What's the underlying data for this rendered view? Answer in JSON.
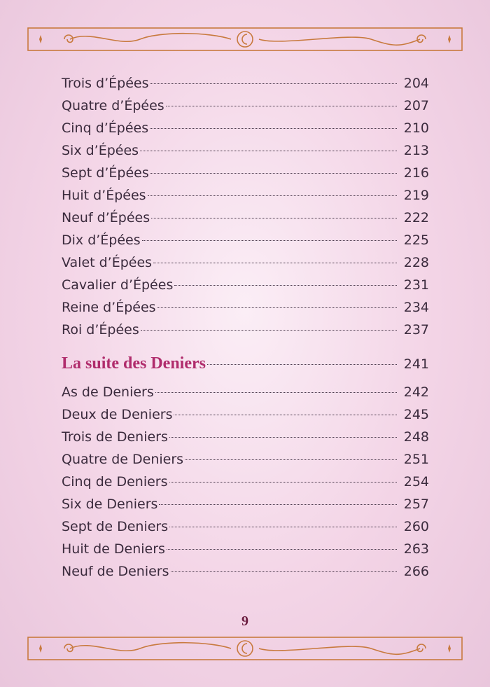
{
  "toc": {
    "entries_before": [
      {
        "title": "Trois d’Épées",
        "page": 204
      },
      {
        "title": "Quatre d’Épées",
        "page": 207
      },
      {
        "title": "Cinq d’Épées",
        "page": 210
      },
      {
        "title": "Six d’Épées",
        "page": 213
      },
      {
        "title": "Sept d’Épées",
        "page": 216
      },
      {
        "title": "Huit d’Épées",
        "page": 219
      },
      {
        "title": "Neuf d’Épées",
        "page": 222
      },
      {
        "title": "Dix d’Épées",
        "page": 225
      },
      {
        "title": "Valet d’Épées",
        "page": 228
      },
      {
        "title": "Cavalier d’Épées",
        "page": 231
      },
      {
        "title": "Reine d’Épées",
        "page": 234
      },
      {
        "title": "Roi d’Épées",
        "page": 237
      }
    ],
    "section": {
      "title": "La suite des Deniers",
      "page": 241
    },
    "entries_after": [
      {
        "title": "As de Deniers",
        "page": 242
      },
      {
        "title": "Deux de Deniers",
        "page": 245
      },
      {
        "title": "Trois de Deniers",
        "page": 248
      },
      {
        "title": "Quatre de Deniers",
        "page": 251
      },
      {
        "title": "Cinq de Deniers",
        "page": 254
      },
      {
        "title": "Six de Deniers",
        "page": 257
      },
      {
        "title": "Sept de Deniers",
        "page": 260
      },
      {
        "title": "Huit de Deniers",
        "page": 263
      },
      {
        "title": "Neuf de Deniers",
        "page": 266
      }
    ]
  },
  "page_number": "9"
}
